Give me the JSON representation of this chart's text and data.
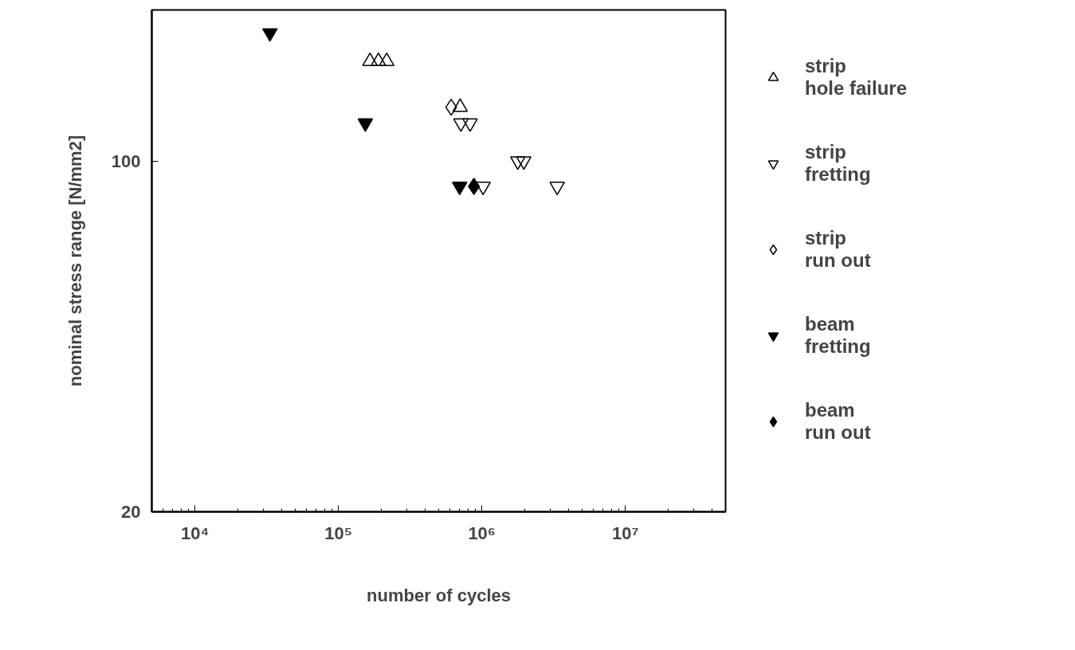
{
  "chart_data": {
    "type": "scatter",
    "xlabel": "number of cycles",
    "ylabel": "nominal stress range [N/mm2]",
    "log": "xy",
    "xlim": [
      5000,
      50000000
    ],
    "ylim": [
      20,
      200
    ],
    "xticks": [
      {
        "value": 10000,
        "label": "10⁴"
      },
      {
        "value": 100000,
        "label": "10⁵"
      },
      {
        "value": 1000000,
        "label": "10⁶"
      },
      {
        "value": 10000000,
        "label": "10⁷"
      }
    ],
    "yticks": [
      20,
      100
    ],
    "grid": false,
    "legend": "right",
    "series": [
      {
        "name": "strip hole failure",
        "color": "#000000",
        "marker": "triangle-open",
        "x": [
          166000,
          190000,
          217000,
          706000
        ],
        "values": [
          158,
          158,
          158,
          128
        ]
      },
      {
        "name": "strip fretting",
        "color": "#000000",
        "marker": "triangle_down-open",
        "x": [
          714000,
          828000,
          1020000,
          1780000,
          1960000,
          3350000
        ],
        "values": [
          119,
          119,
          89,
          100,
          100,
          89
        ]
      },
      {
        "name": "strip run out",
        "color": "#000000",
        "marker": "diamond-open",
        "x": [
          611000
        ],
        "values": [
          128
        ]
      },
      {
        "name": "beam fretting",
        "color": "#000000",
        "marker": "triangle_down",
        "x": [
          33300,
          154000,
          700000
        ],
        "values": [
          180,
          119,
          89
        ]
      },
      {
        "name": "beam run out",
        "color": "#000000",
        "marker": "diamond",
        "x": [
          880000
        ],
        "values": [
          89
        ]
      }
    ]
  }
}
